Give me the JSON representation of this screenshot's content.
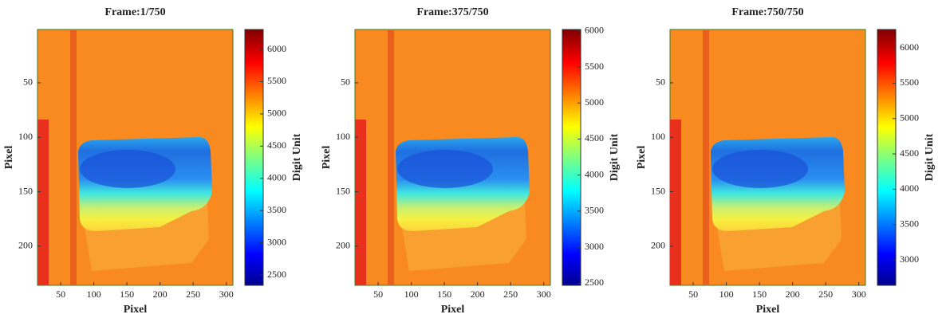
{
  "chart_data": [
    {
      "type": "heatmap",
      "title": "Frame:1/750",
      "xlabel": "Pixel",
      "ylabel": "Pixel",
      "colorbar_label": "Digit Unit",
      "xlim": [
        15,
        310
      ],
      "xticks": [
        50,
        100,
        150,
        200,
        250,
        300
      ],
      "ylim": [
        1,
        236
      ],
      "yticks": [
        50,
        100,
        150,
        200
      ],
      "clim": [
        2340,
        6310
      ],
      "cticks": [
        2500,
        3000,
        3500,
        4000,
        4500,
        5000,
        5500,
        6000
      ]
    },
    {
      "type": "heatmap",
      "title": "Frame:375/750",
      "xlabel": "Pixel",
      "ylabel": "Pixel",
      "colorbar_label": "Digit Unit",
      "xlim": [
        15,
        310
      ],
      "xticks": [
        50,
        100,
        150,
        200,
        250,
        300
      ],
      "ylim": [
        1,
        236
      ],
      "yticks": [
        50,
        100,
        150,
        200
      ],
      "clim": [
        2470,
        6020
      ],
      "cticks": [
        2500,
        3000,
        3500,
        4000,
        4500,
        5000,
        5500,
        6000
      ]
    },
    {
      "type": "heatmap",
      "title": "Frame:750/750",
      "xlabel": "Pixel",
      "ylabel": "Pixel",
      "colorbar_label": "Digit Unit",
      "xlim": [
        15,
        310
      ],
      "xticks": [
        50,
        100,
        150,
        200,
        250,
        300
      ],
      "ylim": [
        1,
        236
      ],
      "yticks": [
        50,
        100,
        150,
        200
      ],
      "clim": [
        2640,
        6260
      ],
      "cticks": [
        3000,
        3500,
        4000,
        4500,
        5000,
        5500,
        6000
      ]
    }
  ]
}
